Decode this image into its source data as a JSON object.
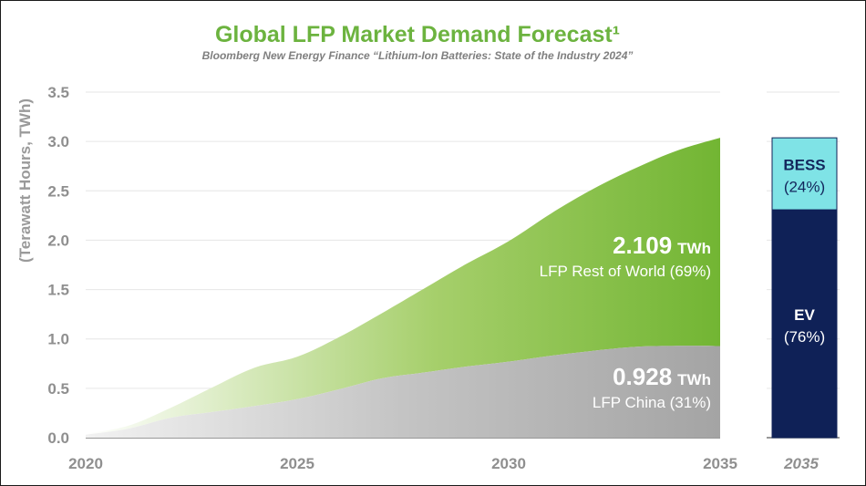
{
  "chart_data": {
    "type": "area",
    "title": "Global LFP Market Demand Forecast¹",
    "subtitle": "Bloomberg New Energy Finance “Lithium-Ion Batteries: State of the Industry 2024”",
    "ylabel": "(Terawatt Hours, TWh)",
    "xlabel": "",
    "ylim": [
      0,
      3.5
    ],
    "xlim": [
      2020,
      2035
    ],
    "y_ticks": [
      "0.0",
      "0.5",
      "1.0",
      "1.5",
      "2.0",
      "2.5",
      "3.0",
      "3.5"
    ],
    "x_ticks": [
      "2020",
      "2025",
      "2030",
      "2035"
    ],
    "grid": true,
    "stacked": true,
    "x": [
      2020,
      2021,
      2022,
      2023,
      2024,
      2025,
      2026,
      2027,
      2028,
      2029,
      2030,
      2031,
      2032,
      2033,
      2034,
      2035
    ],
    "series": [
      {
        "name": "LFP China (31%)",
        "color": "#a8a8a8",
        "values": [
          0.03,
          0.09,
          0.2,
          0.26,
          0.32,
          0.39,
          0.49,
          0.6,
          0.66,
          0.72,
          0.77,
          0.83,
          0.88,
          0.92,
          0.93,
          0.928
        ]
      },
      {
        "name": "LFP Rest of World (69%)",
        "color": "#7ab73e",
        "values": [
          0.01,
          0.03,
          0.1,
          0.25,
          0.39,
          0.43,
          0.53,
          0.66,
          0.85,
          1.04,
          1.22,
          1.44,
          1.64,
          1.81,
          1.98,
          2.109
        ]
      }
    ],
    "annotations": {
      "row_value": "2.109",
      "row_unit": "TWh",
      "row_label": "LFP Rest of World (69%)",
      "china_value": "0.928",
      "china_unit": "TWh",
      "china_label": "LFP China (31%)"
    },
    "side_bar": {
      "category": "2035",
      "segments": [
        {
          "name": "EV",
          "percent_label": "(76%)",
          "share": 0.76,
          "color": "#0f2157"
        },
        {
          "name": "BESS",
          "percent_label": "(24%)",
          "share": 0.24,
          "color": "#7fe3e6"
        }
      ]
    }
  }
}
